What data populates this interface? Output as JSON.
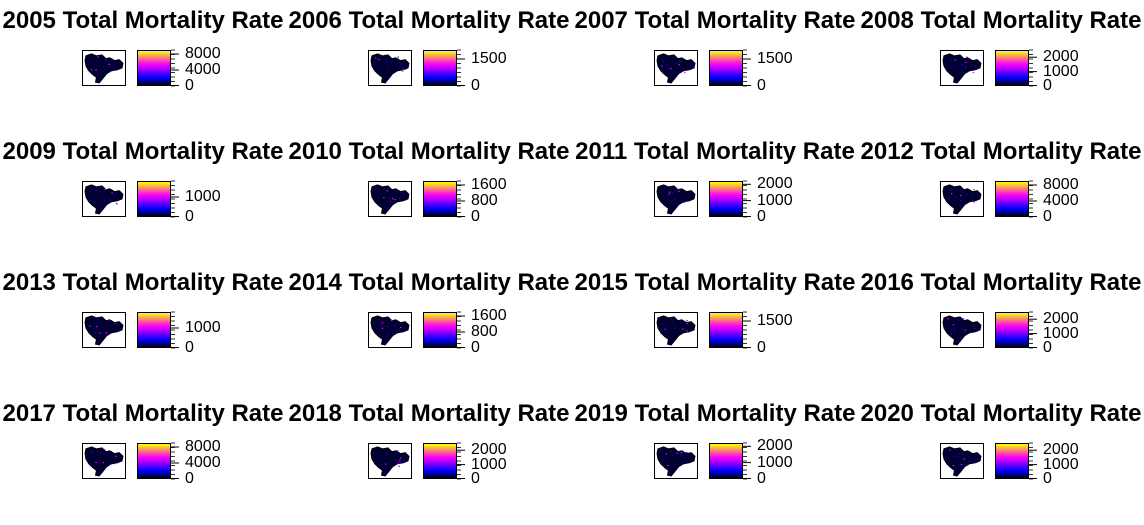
{
  "colors": {
    "palette": [
      "#000000",
      "#0000ff",
      "#ff00ff",
      "#ffff00"
    ],
    "background": "#ffffff",
    "text": "#000000"
  },
  "chart_data": [
    {
      "type": "heatmap",
      "title": "2005 Total Mortality Rate",
      "legend_range": [
        0,
        9000
      ],
      "tick_labels": [
        "0",
        "4000",
        "8000"
      ]
    },
    {
      "type": "heatmap",
      "title": "2006 Total Mortality Rate",
      "legend_range": [
        0,
        2000
      ],
      "tick_labels": [
        "0",
        "1500"
      ]
    },
    {
      "type": "heatmap",
      "title": "2007 Total Mortality Rate",
      "legend_range": [
        0,
        2000
      ],
      "tick_labels": [
        "0",
        "1500"
      ]
    },
    {
      "type": "heatmap",
      "title": "2008 Total Mortality Rate",
      "legend_range": [
        0,
        2500
      ],
      "tick_labels": [
        "0",
        "1000",
        "2000"
      ]
    },
    {
      "type": "heatmap",
      "title": "2009 Total Mortality Rate",
      "legend_range": [
        0,
        1800
      ],
      "tick_labels": [
        "0",
        "1000"
      ]
    },
    {
      "type": "heatmap",
      "title": "2010 Total Mortality Rate",
      "legend_range": [
        0,
        1800
      ],
      "tick_labels": [
        "0",
        "800",
        "1600"
      ]
    },
    {
      "type": "heatmap",
      "title": "2011 Total Mortality Rate",
      "legend_range": [
        0,
        2200
      ],
      "tick_labels": [
        "0",
        "1000",
        "2000"
      ]
    },
    {
      "type": "heatmap",
      "title": "2012 Total Mortality Rate",
      "legend_range": [
        0,
        9000
      ],
      "tick_labels": [
        "0",
        "4000",
        "8000"
      ]
    },
    {
      "type": "heatmap",
      "title": "2013 Total Mortality Rate",
      "legend_range": [
        0,
        1800
      ],
      "tick_labels": [
        "0",
        "1000"
      ]
    },
    {
      "type": "heatmap",
      "title": "2014 Total Mortality Rate",
      "legend_range": [
        0,
        1800
      ],
      "tick_labels": [
        "0",
        "800",
        "1600"
      ]
    },
    {
      "type": "heatmap",
      "title": "2015 Total Mortality Rate",
      "legend_range": [
        0,
        2000
      ],
      "tick_labels": [
        "0",
        "1500"
      ]
    },
    {
      "type": "heatmap",
      "title": "2016 Total Mortality Rate",
      "legend_range": [
        0,
        2500
      ],
      "tick_labels": [
        "0",
        "1000",
        "2000"
      ]
    },
    {
      "type": "heatmap",
      "title": "2017 Total Mortality Rate",
      "legend_range": [
        0,
        9000
      ],
      "tick_labels": [
        "0",
        "4000",
        "8000"
      ]
    },
    {
      "type": "heatmap",
      "title": "2018 Total Mortality Rate",
      "legend_range": [
        0,
        2500
      ],
      "tick_labels": [
        "0",
        "1000",
        "2000"
      ]
    },
    {
      "type": "heatmap",
      "title": "2019 Total Mortality Rate",
      "legend_range": [
        0,
        2200
      ],
      "tick_labels": [
        "0",
        "1000",
        "2000"
      ]
    },
    {
      "type": "heatmap",
      "title": "2020 Total Mortality Rate",
      "legend_range": [
        0,
        2500
      ],
      "tick_labels": [
        "0",
        "1000",
        "2000"
      ]
    }
  ]
}
